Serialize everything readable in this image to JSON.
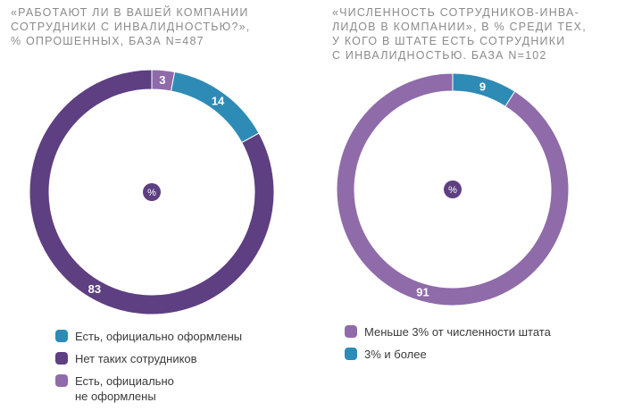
{
  "colors": {
    "teal": "#2e8bb6",
    "dark_purple": "#5e3f82",
    "light_purple": "#8f6ba9",
    "label_on_dark": "#ffffff"
  },
  "chart_data": [
    {
      "type": "pie",
      "title": "«Работают ли в вашей компании\nсотрудники с инвалидностью?»,\n% опрошенных, база N=487",
      "center_label": "%",
      "slices": [
        {
          "label": "Есть, официально\nне оформлены",
          "value": 3,
          "color": "#8f6ba9"
        },
        {
          "label": "Есть, официально оформлены",
          "value": 14,
          "color": "#2e8bb6"
        },
        {
          "label": "Нет таких сотрудников",
          "value": 83,
          "color": "#5e3f82"
        }
      ],
      "legend_order": [
        1,
        2,
        0
      ],
      "legend_position": "bottom"
    },
    {
      "type": "pie",
      "title": "«Численность сотрудников-инва-\nлидов в компании», в % среди тех,\nу кого в штате есть сотрудники\nс инвалидностью. База N=102",
      "center_label": "%",
      "slices": [
        {
          "label": "3% и более",
          "value": 9,
          "color": "#2e8bb6"
        },
        {
          "label": "Меньше 3% от численности штата",
          "value": 91,
          "color": "#8f6ba9"
        }
      ],
      "legend_order": [
        1,
        0
      ],
      "legend_position": "bottom"
    }
  ]
}
